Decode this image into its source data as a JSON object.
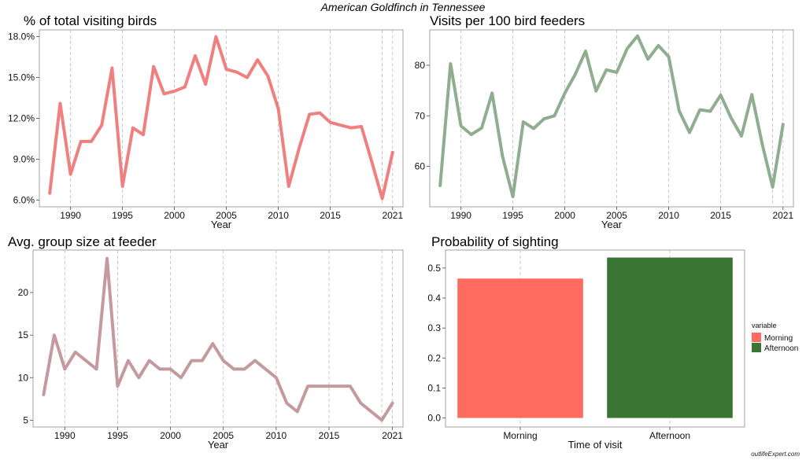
{
  "page": {
    "title": "American Goldfinch in Tennessee",
    "footer": "outlifeExpert.com"
  },
  "colors": {
    "red_line": "#f08080",
    "green_line": "#8fae8f",
    "mauve_line": "#c49a9e",
    "morning": "#ff6b5e",
    "afternoon": "#3a7533",
    "grid": "#bdbdbd",
    "frame": "#8c8c8c"
  },
  "chart_data": [
    {
      "type": "line",
      "title": "% of total visiting birds",
      "xlabel": "Year",
      "ylabel": "",
      "xlim": [
        1987,
        2022
      ],
      "ylim": [
        5.5,
        18.5
      ],
      "x_ticks": [
        1990,
        1995,
        2000,
        2005,
        2010,
        2015,
        2021
      ],
      "y_ticks": [
        6.0,
        9.0,
        12.0,
        15.0,
        18.0
      ],
      "y_tick_labels": [
        "6.0%",
        "9.0%",
        "12.0%",
        "15.0%",
        "18.0%"
      ],
      "grid": "vertical-dashed",
      "series": [
        {
          "x": [
            1988,
            1989,
            1990,
            1991,
            1992,
            1993,
            1994,
            1995,
            1996,
            1997,
            1998,
            1999,
            2000,
            2001,
            2002,
            2003,
            2004,
            2005,
            2006,
            2007,
            2008,
            2009,
            2010,
            2011,
            2012,
            2013,
            2014,
            2015,
            2016,
            2017,
            2018,
            2019,
            2020,
            2021
          ],
          "y": [
            6.5,
            13.1,
            7.9,
            10.3,
            10.3,
            11.5,
            15.7,
            7.0,
            11.3,
            10.8,
            15.8,
            13.8,
            14.0,
            14.3,
            16.6,
            14.5,
            18.0,
            15.6,
            15.4,
            15.0,
            16.3,
            15.1,
            12.7,
            7.0,
            9.8,
            12.3,
            12.4,
            11.7,
            11.5,
            11.3,
            11.4,
            8.8,
            6.1,
            9.5
          ]
        }
      ]
    },
    {
      "type": "line",
      "title": "Visits per 100 bird feeders",
      "xlabel": "Year",
      "ylabel": "",
      "xlim": [
        1987,
        2022
      ],
      "ylim": [
        52,
        87
      ],
      "x_ticks": [
        1990,
        1995,
        2000,
        2005,
        2010,
        2015,
        2021
      ],
      "y_ticks": [
        60,
        70,
        80
      ],
      "y_tick_labels": [
        "60",
        "70",
        "80"
      ],
      "grid": "vertical-dashed",
      "series": [
        {
          "x": [
            1988,
            1989,
            1990,
            1991,
            1992,
            1993,
            1994,
            1995,
            1996,
            1997,
            1998,
            1999,
            2000,
            2001,
            2002,
            2003,
            2004,
            2005,
            2006,
            2007,
            2008,
            2009,
            2010,
            2011,
            2012,
            2013,
            2014,
            2015,
            2016,
            2017,
            2018,
            2019,
            2020,
            2021
          ],
          "y": [
            56.2,
            80.3,
            68.0,
            66.3,
            67.6,
            74.5,
            62.0,
            54.0,
            68.8,
            67.5,
            69.4,
            70.0,
            74.5,
            78.2,
            82.8,
            74.9,
            79.1,
            78.6,
            83.3,
            85.8,
            81.2,
            83.9,
            81.7,
            71.0,
            66.7,
            71.2,
            70.9,
            74.1,
            69.6,
            66.0,
            74.2,
            64.4,
            55.9,
            68.3
          ]
        }
      ]
    },
    {
      "type": "line",
      "title": "Avg. group size at feeder",
      "xlabel": "Year",
      "ylabel": "",
      "xlim": [
        1987,
        2022
      ],
      "ylim": [
        4.2,
        25
      ],
      "x_ticks": [
        1990,
        1995,
        2000,
        2005,
        2010,
        2015,
        2021
      ],
      "y_ticks": [
        5,
        10,
        15,
        20
      ],
      "y_tick_labels": [
        "5",
        "10",
        "15",
        "20"
      ],
      "grid": "vertical-dashed",
      "series": [
        {
          "x": [
            1988,
            1989,
            1990,
            1991,
            1992,
            1993,
            1994,
            1995,
            1996,
            1997,
            1998,
            1999,
            2000,
            2001,
            2002,
            2003,
            2004,
            2005,
            2006,
            2007,
            2008,
            2009,
            2010,
            2011,
            2012,
            2013,
            2014,
            2015,
            2016,
            2017,
            2018,
            2019,
            2020,
            2021
          ],
          "y": [
            8,
            15,
            11,
            13,
            12,
            11,
            24,
            9,
            12,
            10,
            12,
            11,
            11,
            10,
            12,
            12,
            14,
            12,
            11,
            11,
            12,
            11,
            10,
            7,
            6,
            9,
            9,
            9,
            9,
            9,
            7,
            6,
            5,
            7
          ]
        }
      ]
    },
    {
      "type": "bar",
      "title": "Probability of sighting",
      "xlabel": "Time of visit",
      "ylabel": "",
      "categories": [
        "Morning",
        "Afternoon"
      ],
      "values": [
        0.465,
        0.535
      ],
      "ylim": [
        -0.03,
        0.56
      ],
      "y_ticks": [
        0.0,
        0.1,
        0.2,
        0.3,
        0.4,
        0.5
      ],
      "y_tick_labels": [
        "0.0",
        "0.1",
        "0.2",
        "0.3",
        "0.4",
        "0.5"
      ],
      "grid": "vertical-dashed",
      "legend": {
        "title": "variable",
        "position": "right",
        "entries": [
          "Morning",
          "Afternoon"
        ]
      }
    }
  ]
}
